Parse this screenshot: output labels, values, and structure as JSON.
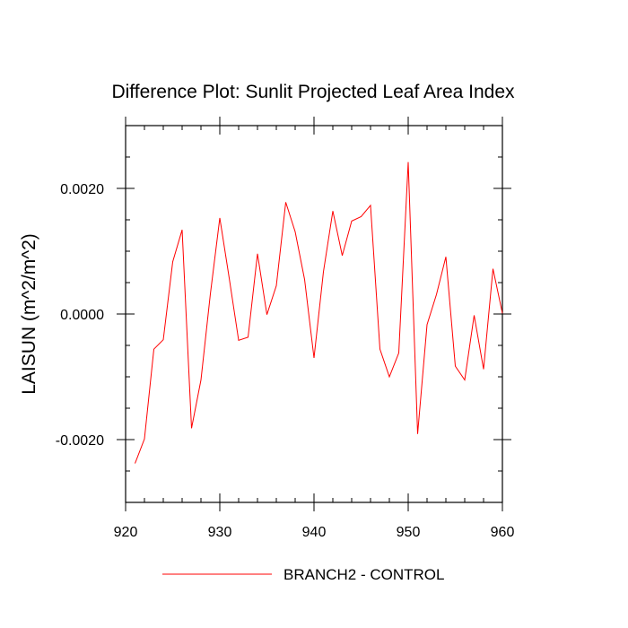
{
  "chart_data": {
    "type": "line",
    "title": "Difference Plot: Sunlit Projected Leaf Area Index",
    "xlabel": "",
    "ylabel": "LAISUN  (m^2/m^2)",
    "xlim": [
      920,
      960
    ],
    "ylim": [
      -0.003,
      0.003
    ],
    "xticks": [
      920,
      930,
      940,
      950,
      960
    ],
    "xtick_labels": [
      "920",
      "930",
      "940",
      "950",
      "960"
    ],
    "yticks": [
      -0.002,
      0.0,
      0.002
    ],
    "ytick_labels": [
      "-0.0020",
      "0.0000",
      "0.0020"
    ],
    "grid": false,
    "legend_position": "bottom-center",
    "series": [
      {
        "name": "BRANCH2 - CONTROL",
        "color": "#ff0000",
        "x": [
          921,
          922,
          923,
          924,
          925,
          926,
          927,
          928,
          929,
          930,
          931,
          932,
          933,
          934,
          935,
          936,
          937,
          938,
          939,
          940,
          941,
          942,
          943,
          944,
          945,
          946,
          947,
          948,
          949,
          950,
          951,
          952,
          953,
          954,
          955,
          956,
          957,
          958,
          959,
          960
        ],
        "values": [
          -0.00238,
          -0.00199,
          -0.00056,
          -0.00041,
          0.00083,
          0.00134,
          -0.00182,
          -0.00105,
          0.00032,
          0.00153,
          0.00057,
          -0.00042,
          -0.00037,
          0.00096,
          -1e-05,
          0.00045,
          0.00178,
          0.00131,
          0.00055,
          -0.0007,
          0.00067,
          0.00164,
          0.00093,
          0.00148,
          0.00155,
          0.00173,
          -0.00056,
          -0.001,
          -0.00062,
          0.00242,
          -0.00191,
          -0.00017,
          0.00031,
          0.00091,
          -0.00083,
          -0.00105,
          -2e-05,
          -0.00088,
          0.00072,
          1e-05
        ]
      }
    ]
  }
}
